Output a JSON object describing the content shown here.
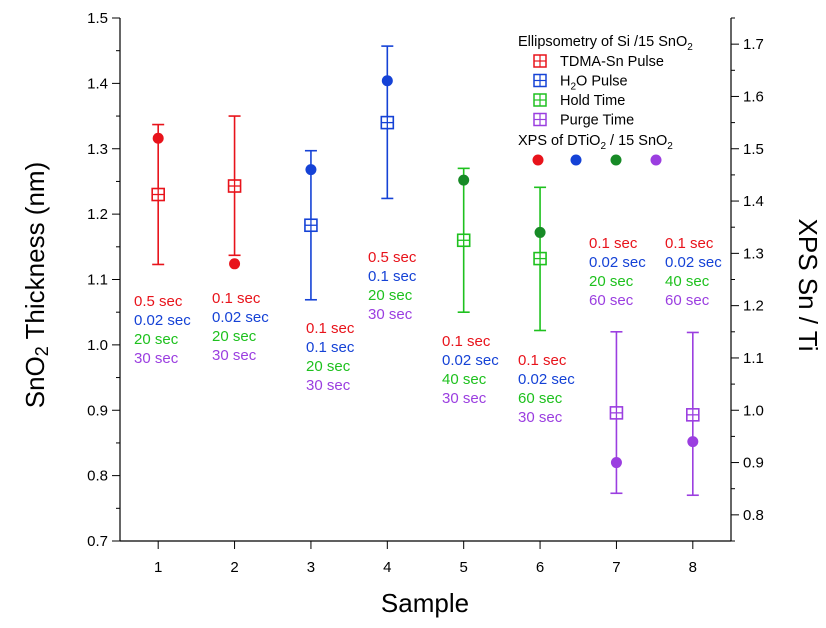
{
  "chart_data": {
    "type": "scatter",
    "xlabel": "Sample",
    "ylabel_left": {
      "base": "SnO",
      "sub": "2",
      "rest": " Thickness (nm)"
    },
    "ylabel_right": "XPS Sn / Ti",
    "x_ticks": [
      1,
      2,
      3,
      4,
      5,
      6,
      7,
      8
    ],
    "xlim": [
      0.5,
      8.5
    ],
    "ylim_left": [
      0.7,
      1.5
    ],
    "ylim_right": [
      0.75,
      1.75
    ],
    "left_ticks": [
      "0.7",
      "0.8",
      "0.9",
      "1.0",
      "1.1",
      "1.2",
      "1.3",
      "1.4",
      "1.5"
    ],
    "right_ticks": [
      "0.8",
      "0.9",
      "1.0",
      "1.1",
      "1.2",
      "1.3",
      "1.4",
      "1.5",
      "1.6",
      "1.7"
    ],
    "colors": {
      "tdma": "#e8131b",
      "h2o": "#1542d6",
      "hold": "#1ec11e",
      "purge": "#9b3ee0",
      "xps_hold": "#178a26"
    },
    "ellipsometry": [
      {
        "sample": 1,
        "thickness": 1.23,
        "err_low": 1.123,
        "err_high": 1.337,
        "series": "tdma"
      },
      {
        "sample": 2,
        "thickness": 1.243,
        "err_low": 1.137,
        "err_high": 1.35,
        "series": "tdma"
      },
      {
        "sample": 3,
        "thickness": 1.183,
        "err_low": 1.069,
        "err_high": 1.297,
        "series": "h2o"
      },
      {
        "sample": 4,
        "thickness": 1.34,
        "err_low": 1.224,
        "err_high": 1.457,
        "series": "h2o"
      },
      {
        "sample": 5,
        "thickness": 1.16,
        "err_low": 1.05,
        "err_high": 1.27,
        "series": "hold"
      },
      {
        "sample": 6,
        "thickness": 1.132,
        "err_low": 1.022,
        "err_high": 1.241,
        "series": "hold"
      },
      {
        "sample": 7,
        "thickness": 0.896,
        "err_low": 0.773,
        "err_high": 1.02,
        "series": "purge"
      },
      {
        "sample": 8,
        "thickness": 0.893,
        "err_low": 0.77,
        "err_high": 1.019,
        "series": "purge"
      }
    ],
    "xps": [
      {
        "sample": 1,
        "sn_ti": 1.52,
        "series": "tdma"
      },
      {
        "sample": 2,
        "sn_ti": 1.28,
        "series": "tdma"
      },
      {
        "sample": 3,
        "sn_ti": 1.46,
        "series": "h2o"
      },
      {
        "sample": 4,
        "sn_ti": 1.63,
        "series": "h2o"
      },
      {
        "sample": 5,
        "sn_ti": 1.44,
        "series": "xps_hold"
      },
      {
        "sample": 6,
        "sn_ti": 1.34,
        "series": "xps_hold"
      },
      {
        "sample": 7,
        "sn_ti": 0.9,
        "series": "purge"
      },
      {
        "sample": 8,
        "sn_ti": 0.94,
        "series": "purge"
      }
    ],
    "annotations": [
      {
        "sample": 1,
        "lines": [
          "0.5 sec",
          "0.02 sec",
          "20 sec",
          "30 sec"
        ]
      },
      {
        "sample": 2,
        "lines": [
          "0.1 sec",
          "0.02 sec",
          "20 sec",
          "30 sec"
        ]
      },
      {
        "sample": 3,
        "lines": [
          "0.1 sec",
          "0.1 sec",
          "20 sec",
          "30 sec"
        ]
      },
      {
        "sample": 4,
        "lines": [
          "0.5 sec",
          "0.1 sec",
          "20 sec",
          "30 sec"
        ]
      },
      {
        "sample": 5,
        "lines": [
          "0.1 sec",
          "0.02 sec",
          "40 sec",
          "30 sec"
        ]
      },
      {
        "sample": 6,
        "lines": [
          "0.1 sec",
          "0.02 sec",
          "60 sec",
          "30 sec"
        ]
      },
      {
        "sample": 7,
        "lines": [
          "0.1 sec",
          "0.02 sec",
          "20 sec",
          "60 sec"
        ]
      },
      {
        "sample": 8,
        "lines": [
          "0.1 sec",
          "0.02 sec",
          "40 sec",
          "60 sec"
        ]
      }
    ],
    "legend": {
      "ellipsometry_title": {
        "base": "Ellipsometry of Si /15 SnO",
        "sub": "2"
      },
      "entries": [
        {
          "series": "tdma",
          "parts": [
            {
              "t": "TDMA-Sn Pulse"
            }
          ]
        },
        {
          "series": "h2o",
          "parts": [
            {
              "t": "H"
            },
            {
              "t": "2",
              "sub": true
            },
            {
              "t": "O Pulse"
            }
          ]
        },
        {
          "series": "hold",
          "parts": [
            {
              "t": "Hold Time"
            }
          ]
        },
        {
          "series": "purge",
          "parts": [
            {
              "t": "Purge Time"
            }
          ]
        }
      ],
      "xps_title": {
        "parts": [
          {
            "t": "XPS of DTiO"
          },
          {
            "t": "2",
            "sub": true
          },
          {
            "t": " / 15 SnO"
          },
          {
            "t": "2",
            "sub": true
          }
        ]
      },
      "xps_dots": [
        "tdma",
        "h2o",
        "xps_hold",
        "purge"
      ],
      "placement": "top-right"
    }
  }
}
